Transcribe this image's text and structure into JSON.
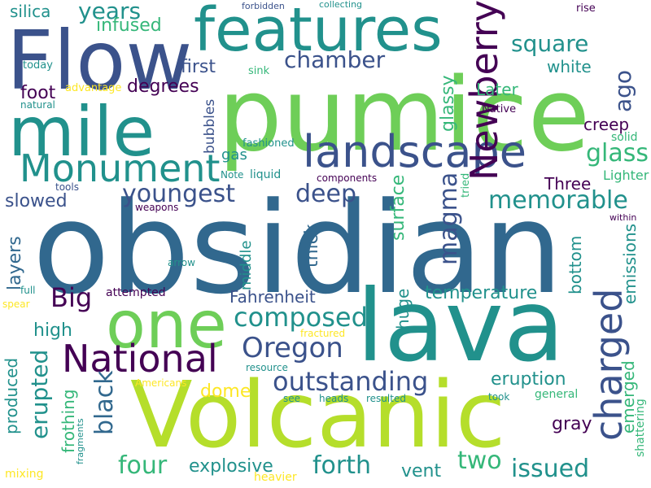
{
  "palette": {
    "background": "#ffffff",
    "deep-purple": "#440154",
    "indigo": "#3b528b",
    "blue": "#31688e",
    "teal": "#21918c",
    "green-teal": "#35b779",
    "green": "#6ece58",
    "lime": "#b5de2b",
    "yellow": "#fde725"
  },
  "words": [
    "obsidian",
    "pumice",
    "lava",
    "Volcanic",
    "Flow",
    "features",
    "mile",
    "one",
    "landscape",
    "Monument",
    "National",
    "Newberry",
    "charged",
    "composed",
    "Oregon",
    "outstanding",
    "youngest",
    "memorable",
    "glass",
    "deep",
    "magma",
    "four",
    "two",
    "forth",
    "issued",
    "erupted",
    "black",
    "chamber",
    "square",
    "years",
    "ago",
    "Big",
    "Fahrenheit",
    "temperature",
    "eruption",
    "creep",
    "explosive",
    "layers",
    "surface",
    "thick",
    "glassy",
    "bottom",
    "emissions",
    "dome",
    "vent",
    "frothing",
    "produced",
    "emerged",
    "gray",
    "huge",
    "high",
    "silica",
    "infused",
    "first",
    "Later",
    "white",
    "degrees",
    "foot",
    "slowed",
    "Three",
    "Lighter",
    "gas",
    "bubbles",
    "middle",
    "solid",
    "fashioned",
    "today",
    "sink",
    "forbidden",
    "collecting",
    "rise",
    "Native",
    "advantage",
    "natural",
    "Note",
    "liquid",
    "components",
    "tools",
    "tried",
    "weapons",
    "within",
    "arrow",
    "full",
    "attempted",
    "spear",
    "fractured",
    "resource",
    "Americans",
    "see",
    "heads",
    "resulted",
    "took",
    "general",
    "fragments",
    "mixing",
    "heavier",
    "shattering"
  ]
}
